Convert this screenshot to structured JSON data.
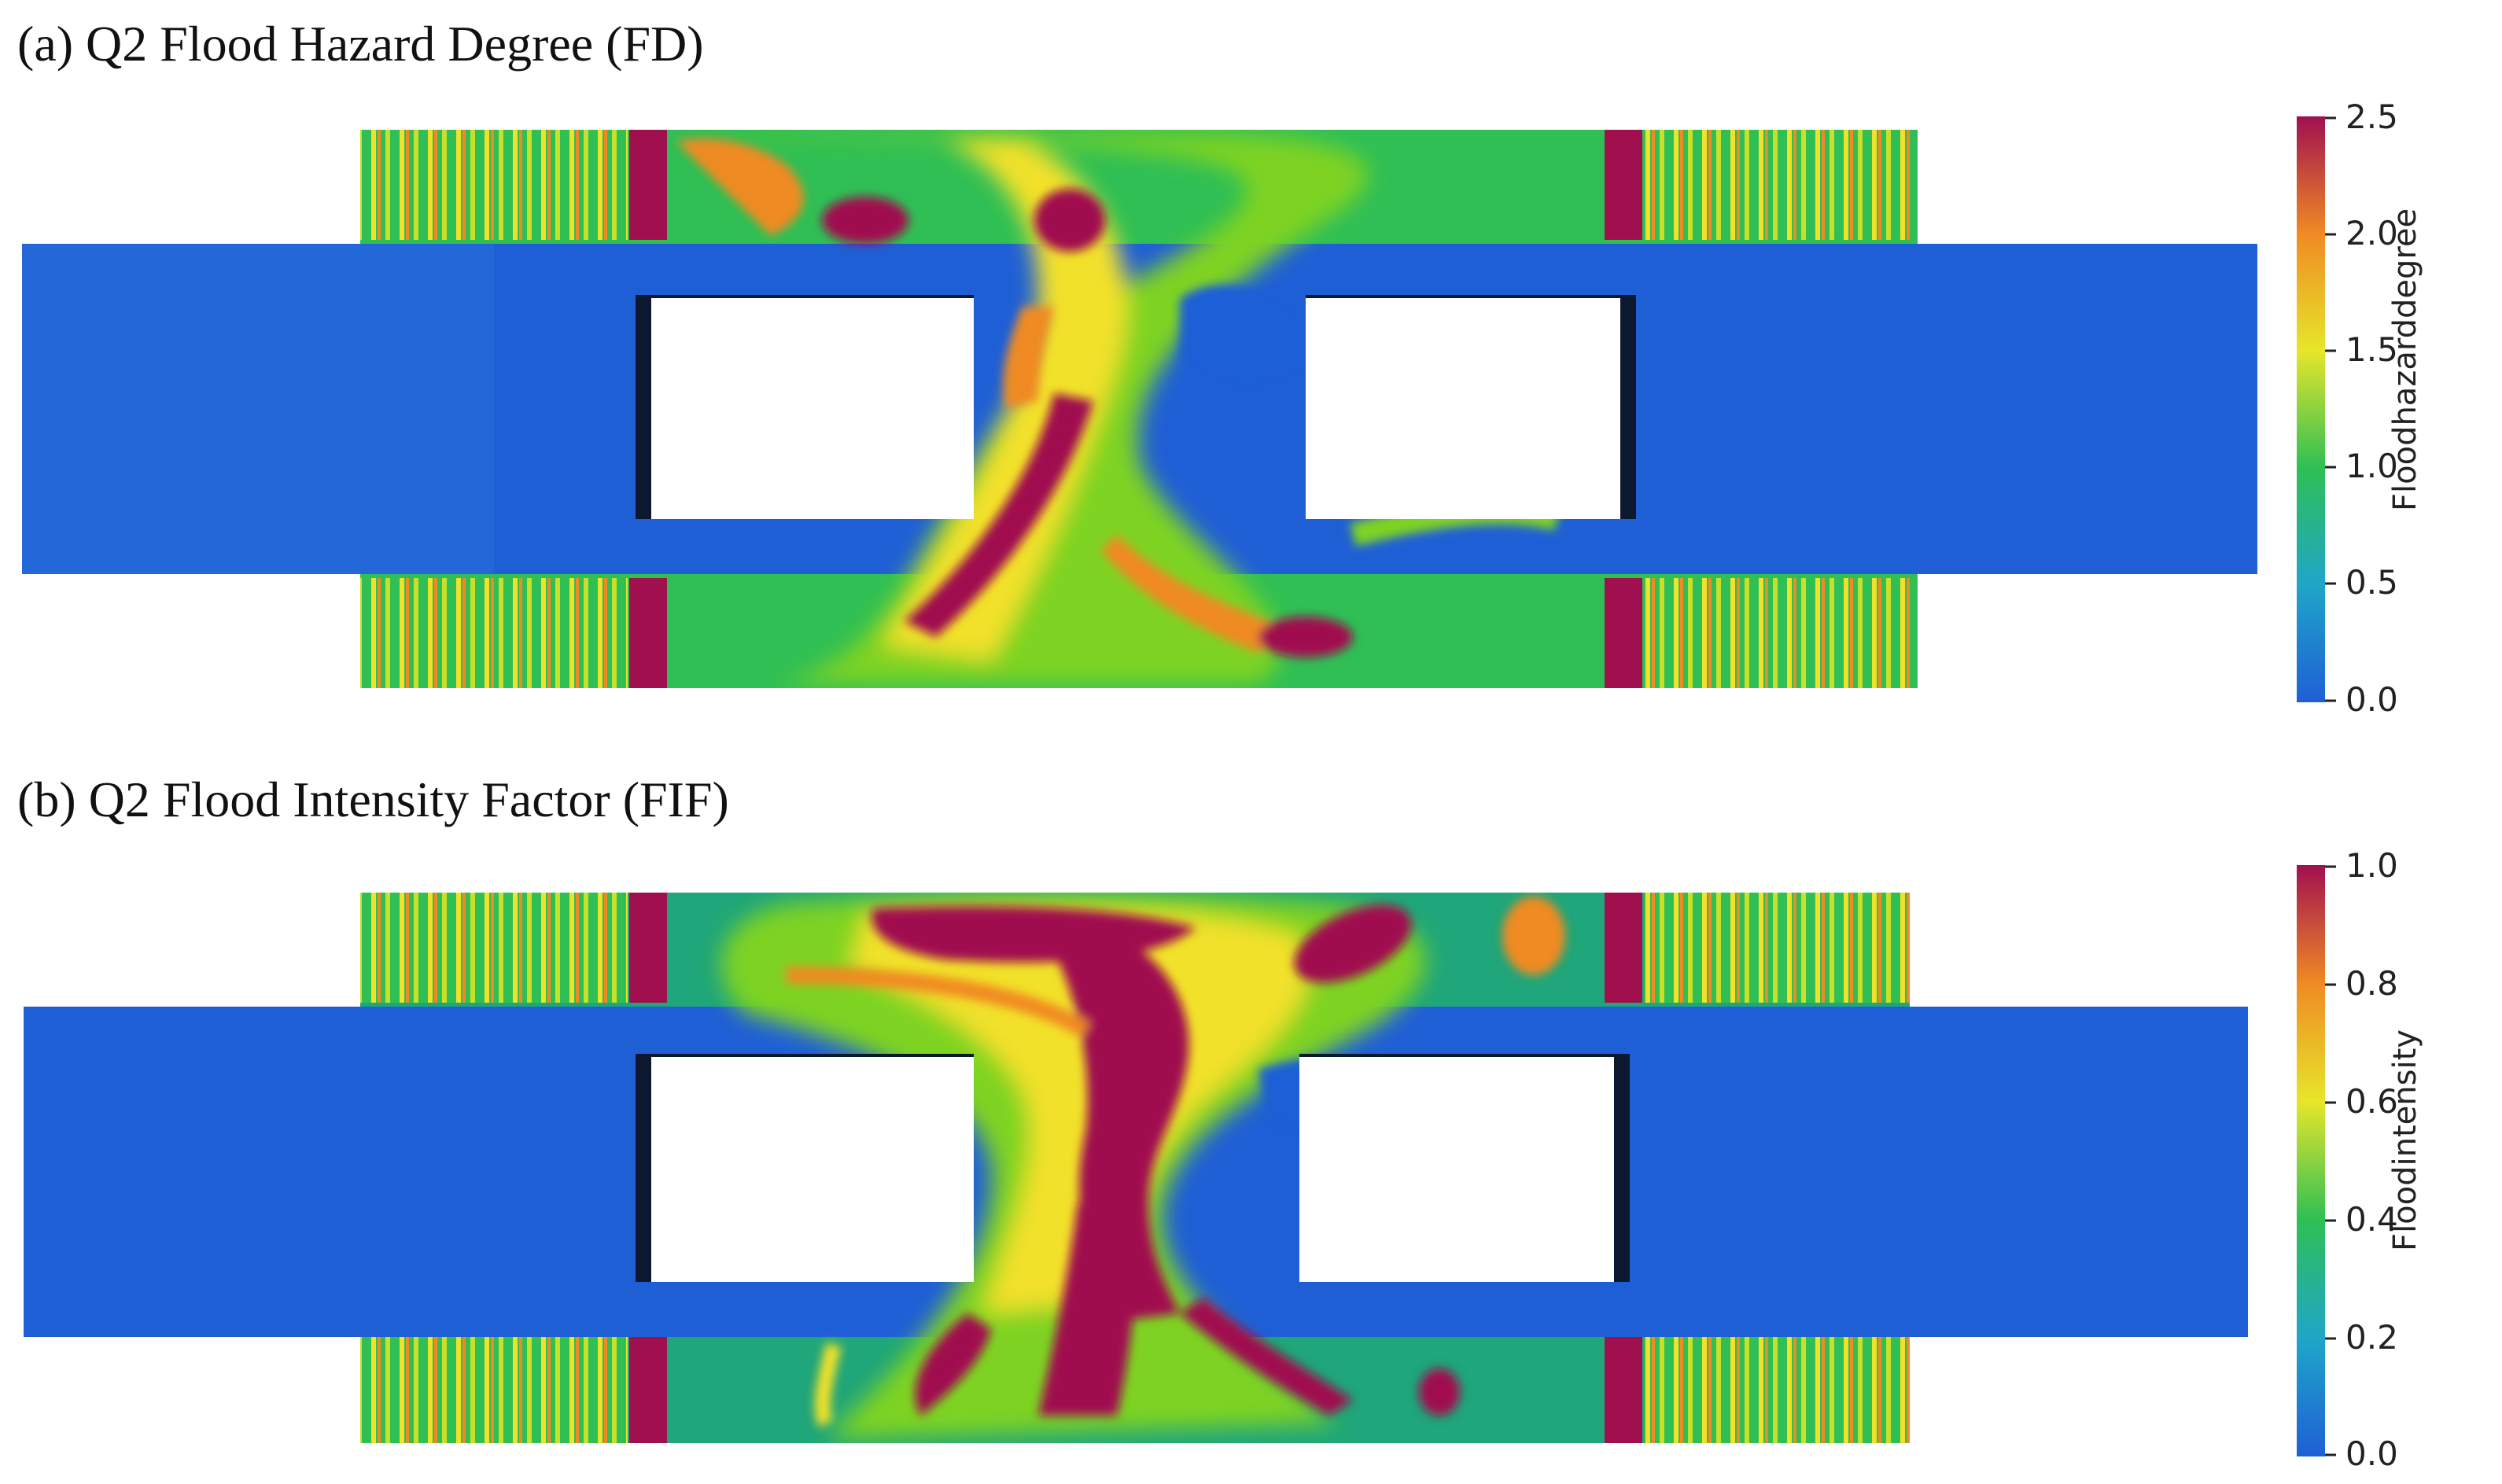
{
  "panels": [
    {
      "id": "a",
      "title": "(a) Q2 Flood Hazard Degree (FD)",
      "colorbar": {
        "title": "Floodhazarddegree",
        "ticks": [
          "2.5",
          "2.0",
          "1.5",
          "1.0",
          "0.5",
          "0.0"
        ]
      }
    },
    {
      "id": "b",
      "title": "(b) Q2 Flood Intensity Factor (FIF)",
      "colorbar": {
        "title": "Floodintensity",
        "ticks": [
          "1.0",
          "0.8",
          "0.6",
          "0.4",
          "0.2",
          "0.0"
        ]
      }
    }
  ],
  "colors": {
    "low": "#1f5fd6",
    "mid_low": "#22b15a",
    "mid": "#7ed321",
    "mid_high": "#f2e12a",
    "high": "#f08a24",
    "max": "#a0104f",
    "building_shadow": "#0c1830"
  }
}
